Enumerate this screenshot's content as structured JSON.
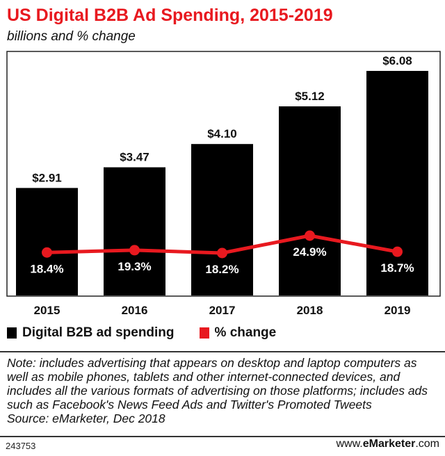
{
  "header": {
    "title": "US Digital B2B Ad Spending, 2015-2019",
    "subtitle": "billions and % change"
  },
  "chart_data": {
    "type": "bar",
    "title": "US Digital B2B Ad Spending, 2015-2019",
    "subtitle": "billions and % change",
    "categories": [
      "2015",
      "2016",
      "2017",
      "2018",
      "2019"
    ],
    "series": [
      {
        "name": "Digital B2B ad spending",
        "type": "bar",
        "values": [
          2.91,
          3.47,
          4.1,
          5.12,
          6.08
        ],
        "labels": [
          "$2.91",
          "$3.47",
          "$4.10",
          "$5.12",
          "$6.08"
        ],
        "color": "#000000"
      },
      {
        "name": "% change",
        "type": "line",
        "values": [
          18.4,
          19.3,
          18.2,
          24.9,
          18.7
        ],
        "labels": [
          "18.4%",
          "19.3%",
          "18.2%",
          "24.9%",
          "18.7%"
        ],
        "color": "#e8191f"
      }
    ],
    "xlabel": "",
    "ylabel": "",
    "ylim": [
      0,
      6.5
    ],
    "grid": false,
    "legend_position": "bottom-left"
  },
  "legend": {
    "items": [
      {
        "label": "Digital B2B ad spending",
        "color": "#000000"
      },
      {
        "label": "% change",
        "color": "#e8191f"
      }
    ]
  },
  "notes": {
    "text": "Note: includes advertising that appears on desktop and laptop computers as well as mobile phones, tablets and other internet-connected devices, and includes all the various formats of advertising on those platforms; includes ads such as Facebook's News Feed Ads and Twitter's Promoted Tweets",
    "source": "Source: eMarketer, Dec 2018"
  },
  "footer": {
    "chart_id": "243753",
    "brand_prefix": "www.",
    "brand_name": "eMarketer",
    "brand_suffix": ".com"
  },
  "colors": {
    "accent": "#e8191f",
    "bar": "#000000"
  }
}
